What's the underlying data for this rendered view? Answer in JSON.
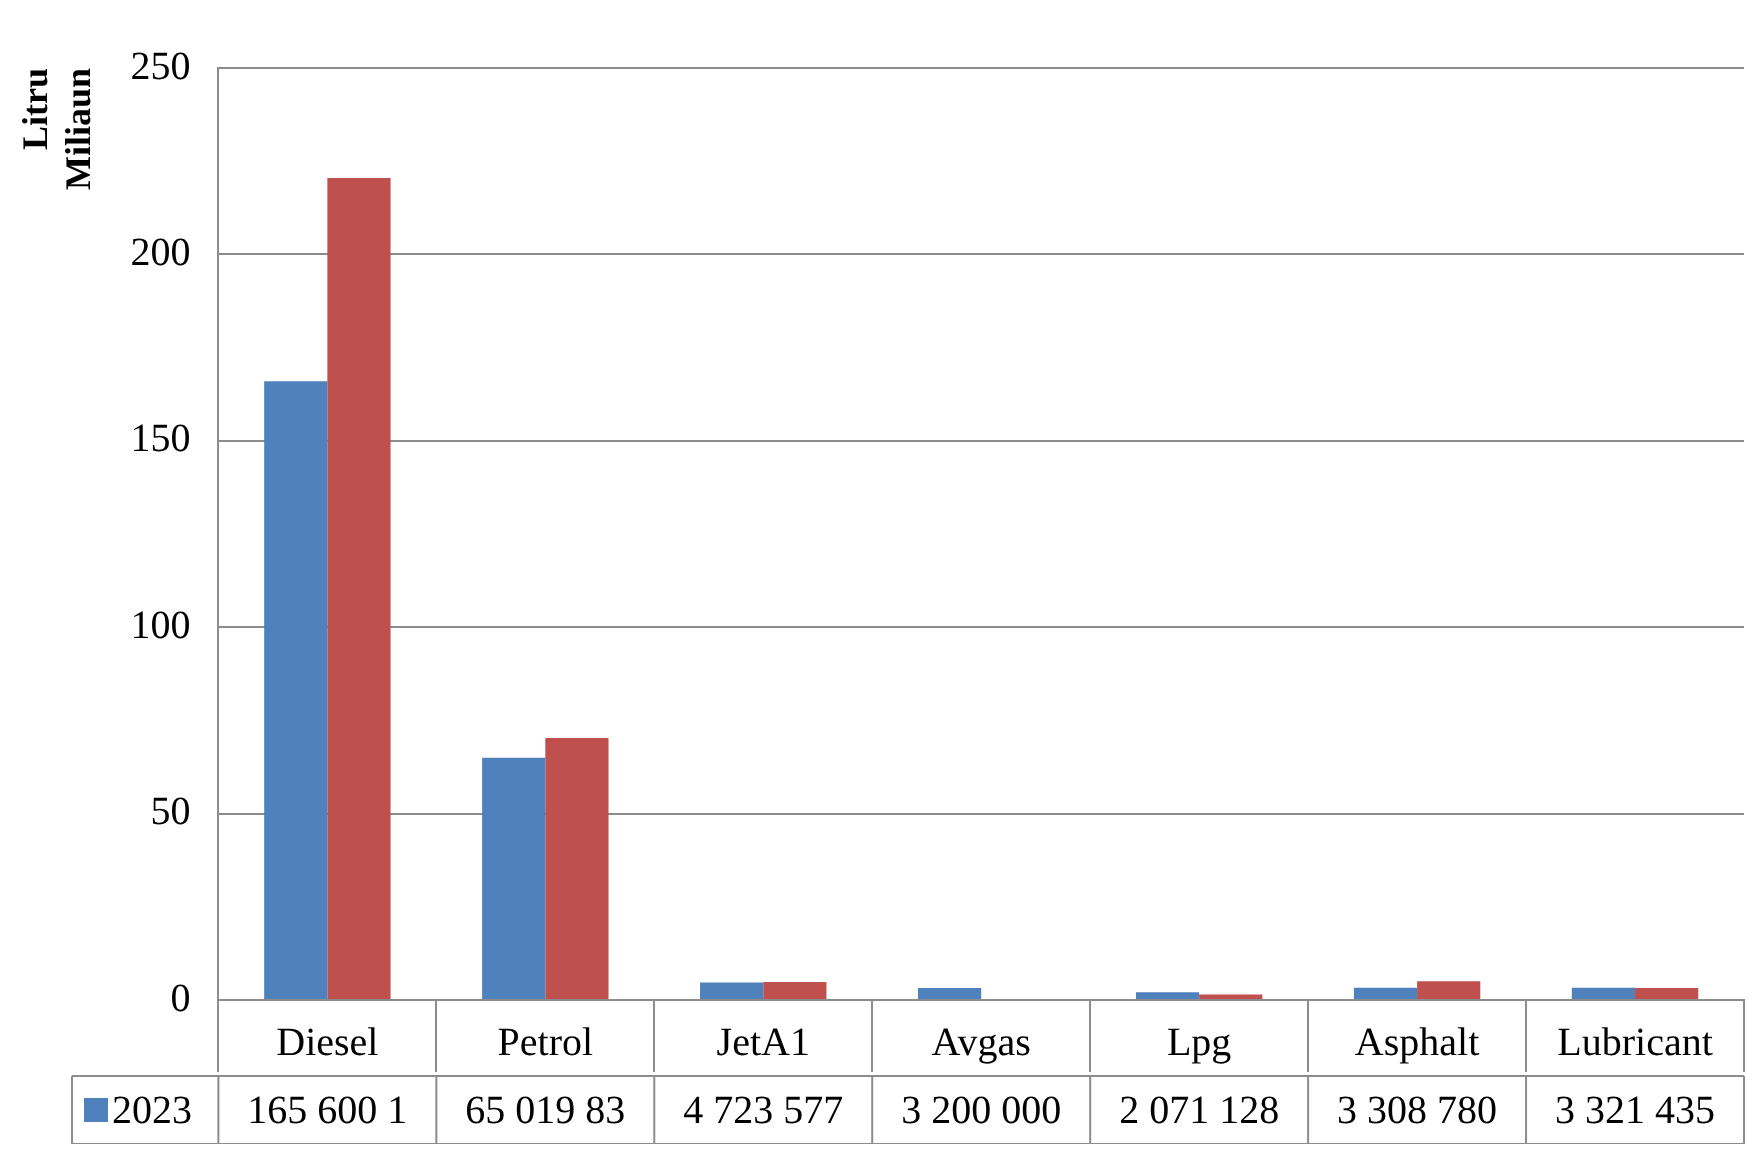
{
  "chart_data": {
    "type": "bar",
    "ylabel": "Litru\nMiliaun",
    "categories": [
      "Diesel",
      "Petrol",
      "JetA1",
      "Avgas",
      "Lpg",
      "Asphalt",
      "Lubricant"
    ],
    "series": [
      {
        "name": "2023",
        "color": "#4f81bd",
        "values": [
          166,
          65,
          4.7,
          3.2,
          2.1,
          3.3,
          3.3
        ]
      },
      {
        "color": "#c0504d",
        "values": [
          220.5,
          70.3,
          4.8,
          null,
          1.5,
          5,
          3.2
        ]
      }
    ],
    "annotations": [
      "165 600 1",
      "65 019 83",
      "4 723 577",
      "3 200 000",
      "2 071 128",
      "3 308 780",
      "3 321 435"
    ],
    "ylim": [
      0,
      250
    ],
    "yticks": [
      0,
      50,
      100,
      150,
      200,
      250
    ],
    "grid": "y",
    "legend": "bottom"
  }
}
